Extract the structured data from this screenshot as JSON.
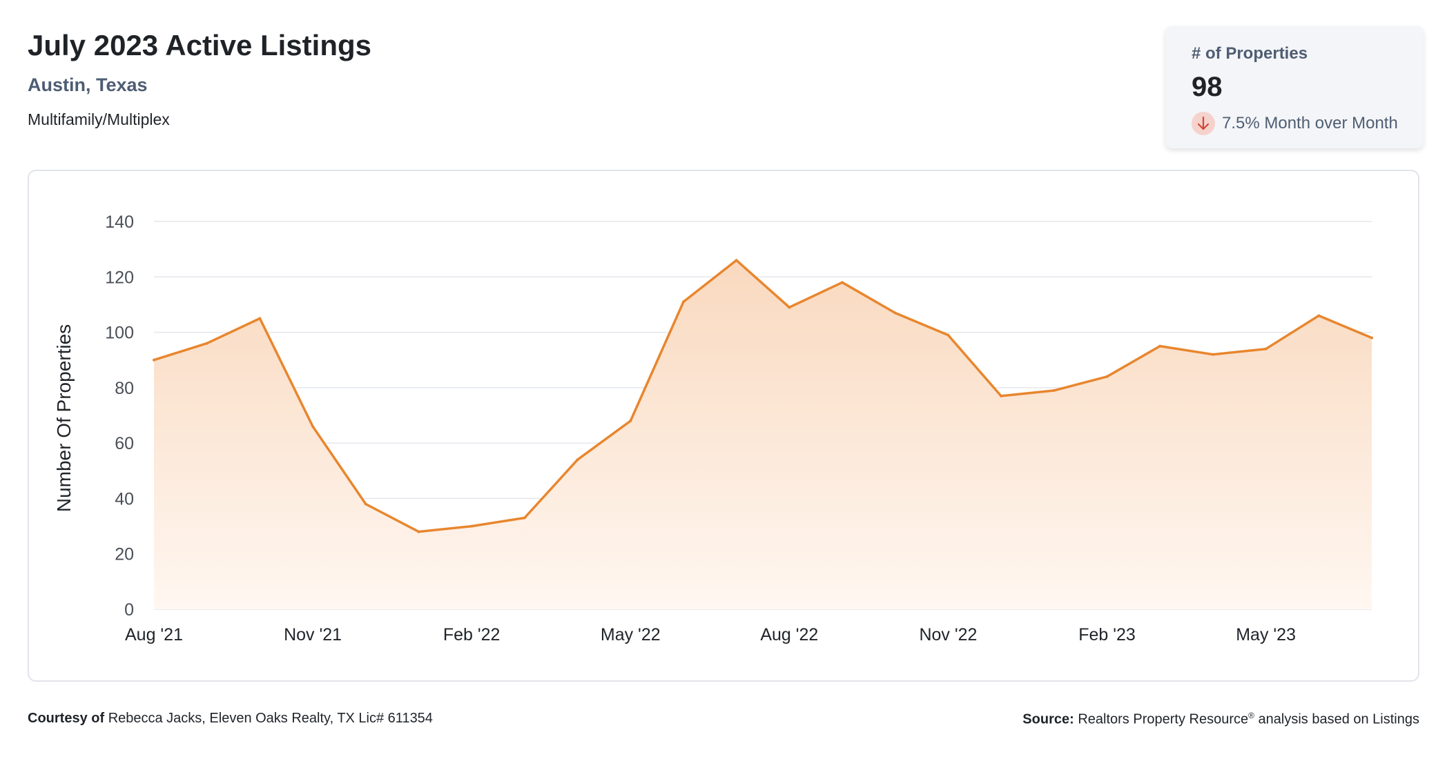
{
  "header": {
    "title": "July 2023 Active Listings",
    "location": "Austin, Texas",
    "category": "Multifamily/Multiplex"
  },
  "stat_card": {
    "label": "# of Properties",
    "value": "98",
    "change_text": "7.5% Month over Month",
    "change_direction_icon": "arrow-down-icon"
  },
  "colors": {
    "line": "#e8862e",
    "area_top": "#f9d9bf",
    "area_bottom": "#fff7f1",
    "grid": "#e3e6eb",
    "decline_badge": "#f6d2cc",
    "decline_arrow": "#d0463a"
  },
  "footer": {
    "courtesy_label": "Courtesy of",
    "courtesy_text": "Rebecca Jacks, Eleven Oaks Realty, TX Lic# 611354",
    "source_label": "Source:",
    "source_name": "Realtors Property Resource",
    "source_mark": "®",
    "source_suffix": "analysis based on Listings"
  },
  "chart_data": {
    "type": "area",
    "title": "",
    "ylabel": "Number Of Properties",
    "xlabel": "",
    "ylim": [
      0,
      140
    ],
    "y_ticks": [
      "0",
      "20",
      "40",
      "60",
      "80",
      "100",
      "120",
      "140"
    ],
    "x": [
      "Aug '21",
      "Sep '21",
      "Oct '21",
      "Nov '21",
      "Dec '21",
      "Jan '22",
      "Feb '22",
      "Mar '22",
      "Apr '22",
      "May '22",
      "Jun '22",
      "Jul '22",
      "Aug '22",
      "Sep '22",
      "Oct '22",
      "Nov '22",
      "Dec '22",
      "Jan '23",
      "Feb '23",
      "Mar '23",
      "Apr '23",
      "May '23",
      "Jun '23",
      "Jul '23"
    ],
    "x_tick_labels": [
      "Aug '21",
      "Nov '21",
      "Feb '22",
      "May '22",
      "Aug '22",
      "Nov '22",
      "Feb '23",
      "May '23"
    ],
    "series": [
      {
        "values": [
          90,
          96,
          105,
          66,
          38,
          28,
          30,
          33,
          54,
          68,
          111,
          126,
          109,
          118,
          107,
          99,
          77,
          79,
          84,
          95,
          92,
          94,
          106,
          98
        ]
      }
    ],
    "grid": true,
    "legend": "none"
  }
}
